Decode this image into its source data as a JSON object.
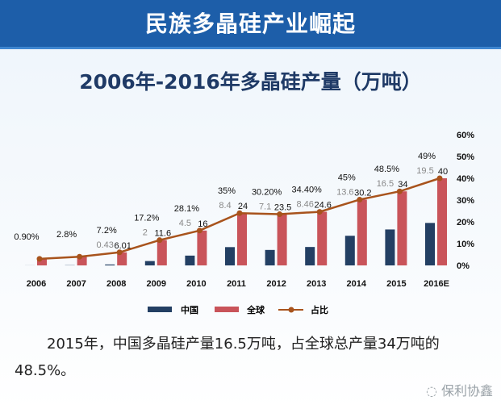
{
  "banner_title": "民族多晶硅产业崛起",
  "paragraph": "2015年，中国多晶硅产量16.5万吨，占全球总产量34万吨的48.5%。",
  "watermark": "保利协鑫",
  "chart_data": {
    "type": "bar",
    "title": "2006年-2016年多晶硅产量（万吨）",
    "categories": [
      "2006",
      "2007",
      "2008",
      "2009",
      "2010",
      "2011",
      "2012",
      "2013",
      "2014",
      "2015",
      "2016E"
    ],
    "series": [
      {
        "name": "中国",
        "color": "#233f63",
        "values": [
          0.03,
          0.1,
          0.43,
          2,
          4.5,
          8.4,
          7.1,
          8.46,
          13.6,
          16.5,
          19.5
        ],
        "labels": [
          "",
          "",
          "0.43",
          "2",
          "4.5",
          "8.4",
          "7.1",
          "8.46",
          "13.6",
          "16.5",
          "19.5"
        ]
      },
      {
        "name": "全球",
        "color": "#c9545a",
        "values": [
          3,
          4,
          6.01,
          11.6,
          16,
          24,
          23.5,
          24.6,
          30.2,
          34,
          40
        ],
        "labels": [
          "",
          "",
          "6.01",
          "11.6",
          "16",
          "24",
          "23.5",
          "24.6",
          "30.2",
          "34",
          "40"
        ]
      },
      {
        "name": "占比",
        "color": "#a8531c",
        "type": "line",
        "values": [
          0.9,
          2.8,
          7.2,
          17.2,
          28.1,
          35,
          30.2,
          34.4,
          45,
          48.5,
          49
        ],
        "labels": [
          "0.90%",
          "2.8%",
          "7.2%",
          "17.2%",
          "28.1%",
          "35%",
          "30.20%",
          "34.40%",
          "45%",
          "48.5%",
          "49%"
        ]
      }
    ],
    "y2_ticks": [
      "0%",
      "10%",
      "20%",
      "30%",
      "40%",
      "50%",
      "60%"
    ],
    "ylim": [
      0,
      60
    ],
    "legend": "bottom"
  }
}
